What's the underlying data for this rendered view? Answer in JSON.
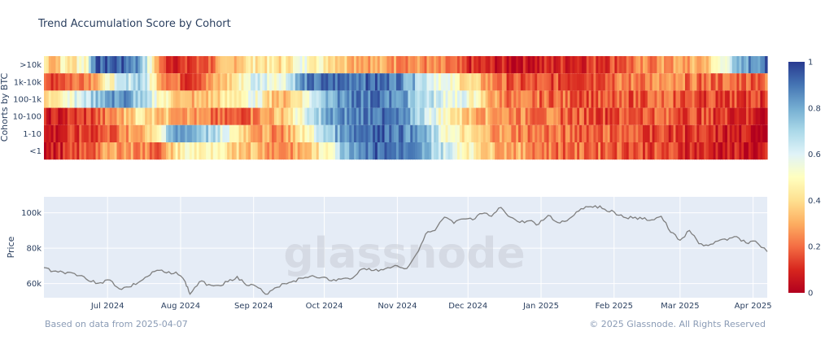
{
  "chart_data": [
    {
      "type": "heatmap",
      "title": "Trend Accumulation Score by Cohort",
      "ylabel": "Cohorts by BTC",
      "rows": [
        ">10k",
        "1k-10k",
        "100-1k",
        "10-100",
        "1-10",
        "<1"
      ],
      "x_range": [
        "2024-06-04",
        "2025-04-07"
      ],
      "colorbar": {
        "min": 0,
        "max": 1,
        "ticks": [
          0,
          0.2,
          0.4,
          0.6,
          0.8,
          1
        ],
        "tick_labels": [
          "0",
          "0.2",
          "0.4",
          "0.6",
          "0.8",
          "1"
        ]
      },
      "segments": [
        {
          "row": ">10k",
          "values": [
            [
              0,
              0.45
            ],
            [
              4,
              0.3
            ],
            [
              8,
              0.5
            ],
            [
              12,
              0.35
            ],
            [
              14,
              0.55
            ],
            [
              18,
              0.5
            ],
            [
              20,
              0.9
            ],
            [
              30,
              0.95
            ],
            [
              40,
              0.85
            ],
            [
              45,
              0.5
            ],
            [
              50,
              0.15
            ],
            [
              60,
              0.1
            ],
            [
              70,
              0.2
            ],
            [
              80,
              0.35
            ],
            [
              90,
              0.45
            ],
            [
              100,
              0.4
            ],
            [
              110,
              0.55
            ],
            [
              120,
              0.45
            ],
            [
              130,
              0.35
            ],
            [
              140,
              0.3
            ],
            [
              160,
              0.25
            ],
            [
              170,
              0.2
            ],
            [
              180,
              0.1
            ],
            [
              200,
              0.05
            ],
            [
              220,
              0.1
            ],
            [
              240,
              0.15
            ],
            [
              260,
              0.25
            ],
            [
              280,
              0.3
            ],
            [
              290,
              0.6
            ],
            [
              300,
              0.85
            ],
            [
              307,
              0.9
            ]
          ]
        },
        {
          "row": "1k-10k",
          "values": [
            [
              0,
              0.15
            ],
            [
              10,
              0.2
            ],
            [
              20,
              0.3
            ],
            [
              30,
              0.55
            ],
            [
              40,
              0.75
            ],
            [
              50,
              0.3
            ],
            [
              60,
              0.15
            ],
            [
              70,
              0.25
            ],
            [
              80,
              0.4
            ],
            [
              90,
              0.65
            ],
            [
              100,
              0.55
            ],
            [
              110,
              0.85
            ],
            [
              120,
              0.9
            ],
            [
              130,
              0.92
            ],
            [
              150,
              0.9
            ],
            [
              160,
              0.7
            ],
            [
              170,
              0.55
            ],
            [
              180,
              0.4
            ],
            [
              190,
              0.25
            ],
            [
              200,
              0.15
            ],
            [
              220,
              0.15
            ],
            [
              240,
              0.2
            ],
            [
              260,
              0.25
            ],
            [
              280,
              0.2
            ],
            [
              300,
              0.2
            ],
            [
              307,
              0.2
            ]
          ]
        },
        {
          "row": "100-1k",
          "values": [
            [
              0,
              0.35
            ],
            [
              8,
              0.55
            ],
            [
              16,
              0.6
            ],
            [
              24,
              0.8
            ],
            [
              34,
              0.85
            ],
            [
              40,
              0.7
            ],
            [
              50,
              0.5
            ],
            [
              60,
              0.3
            ],
            [
              70,
              0.35
            ],
            [
              80,
              0.45
            ],
            [
              90,
              0.55
            ],
            [
              100,
              0.3
            ],
            [
              110,
              0.5
            ],
            [
              120,
              0.8
            ],
            [
              130,
              0.85
            ],
            [
              140,
              0.9
            ],
            [
              150,
              0.85
            ],
            [
              160,
              0.7
            ],
            [
              170,
              0.6
            ],
            [
              180,
              0.55
            ],
            [
              190,
              0.3
            ],
            [
              200,
              0.2
            ],
            [
              220,
              0.2
            ],
            [
              240,
              0.15
            ],
            [
              260,
              0.2
            ],
            [
              280,
              0.15
            ],
            [
              300,
              0.15
            ],
            [
              307,
              0.1
            ]
          ]
        },
        {
          "row": "10-100",
          "values": [
            [
              0,
              0.05
            ],
            [
              10,
              0.1
            ],
            [
              20,
              0.15
            ],
            [
              30,
              0.25
            ],
            [
              40,
              0.45
            ],
            [
              50,
              0.35
            ],
            [
              60,
              0.3
            ],
            [
              70,
              0.2
            ],
            [
              80,
              0.15
            ],
            [
              90,
              0.25
            ],
            [
              100,
              0.35
            ],
            [
              110,
              0.55
            ],
            [
              120,
              0.8
            ],
            [
              140,
              0.92
            ],
            [
              150,
              0.85
            ],
            [
              160,
              0.7
            ],
            [
              170,
              0.5
            ],
            [
              180,
              0.35
            ],
            [
              190,
              0.3
            ],
            [
              200,
              0.25
            ],
            [
              220,
              0.2
            ],
            [
              240,
              0.15
            ],
            [
              260,
              0.2
            ],
            [
              280,
              0.15
            ],
            [
              300,
              0.1
            ],
            [
              307,
              0.05
            ]
          ]
        },
        {
          "row": "1-10",
          "values": [
            [
              0,
              0.05
            ],
            [
              10,
              0.1
            ],
            [
              20,
              0.15
            ],
            [
              30,
              0.2
            ],
            [
              40,
              0.3
            ],
            [
              50,
              0.55
            ],
            [
              55,
              0.8
            ],
            [
              60,
              0.85
            ],
            [
              70,
              0.7
            ],
            [
              80,
              0.5
            ],
            [
              90,
              0.3
            ],
            [
              100,
              0.25
            ],
            [
              110,
              0.45
            ],
            [
              120,
              0.7
            ],
            [
              130,
              0.9
            ],
            [
              140,
              0.95
            ],
            [
              150,
              0.9
            ],
            [
              160,
              0.8
            ],
            [
              170,
              0.55
            ],
            [
              180,
              0.4
            ],
            [
              190,
              0.3
            ],
            [
              200,
              0.25
            ],
            [
              220,
              0.2
            ],
            [
              240,
              0.2
            ],
            [
              260,
              0.15
            ],
            [
              280,
              0.1
            ],
            [
              300,
              0.05
            ],
            [
              307,
              0.05
            ]
          ]
        },
        {
          "row": "<1",
          "values": [
            [
              0,
              0.05
            ],
            [
              10,
              0.1
            ],
            [
              20,
              0.2
            ],
            [
              30,
              0.3
            ],
            [
              40,
              0.25
            ],
            [
              50,
              0.2
            ],
            [
              55,
              0.4
            ],
            [
              60,
              0.5
            ],
            [
              70,
              0.45
            ],
            [
              80,
              0.4
            ],
            [
              90,
              0.35
            ],
            [
              100,
              0.25
            ],
            [
              110,
              0.3
            ],
            [
              120,
              0.5
            ],
            [
              130,
              0.85
            ],
            [
              140,
              0.92
            ],
            [
              150,
              0.9
            ],
            [
              160,
              0.8
            ],
            [
              170,
              0.65
            ],
            [
              180,
              0.5
            ],
            [
              190,
              0.35
            ],
            [
              200,
              0.3
            ],
            [
              220,
              0.2
            ],
            [
              240,
              0.2
            ],
            [
              260,
              0.15
            ],
            [
              280,
              0.1
            ],
            [
              300,
              0.05
            ],
            [
              307,
              0.05
            ]
          ]
        }
      ]
    },
    {
      "type": "line",
      "ylabel": "Price",
      "y_ticks": [
        60000,
        80000,
        100000
      ],
      "y_tick_labels": [
        "60k",
        "80k",
        "100k"
      ],
      "ylim": [
        52000,
        109000
      ],
      "x_ticks": [
        "2024-07-01",
        "2024-08-01",
        "2024-09-01",
        "2024-10-01",
        "2024-11-01",
        "2024-12-01",
        "2025-01-01",
        "2025-02-01",
        "2025-03-01",
        "2025-04-01"
      ],
      "x_tick_labels": [
        "Jul 2024",
        "Aug 2024",
        "Sep 2024",
        "Oct 2024",
        "Nov 2024",
        "Dec 2024",
        "Jan 2025",
        "Feb 2025",
        "Mar 2025",
        "Apr 2025"
      ],
      "series": [
        {
          "x": [
            "2024-06-04",
            "2024-06-08",
            "2024-06-12",
            "2024-06-16",
            "2024-06-20",
            "2024-06-24",
            "2024-06-28",
            "2024-07-02",
            "2024-07-06",
            "2024-07-10",
            "2024-07-14",
            "2024-07-18",
            "2024-07-22",
            "2024-07-26",
            "2024-07-30",
            "2024-08-03",
            "2024-08-05",
            "2024-08-09",
            "2024-08-13",
            "2024-08-17",
            "2024-08-21",
            "2024-08-25",
            "2024-08-29",
            "2024-09-02",
            "2024-09-06",
            "2024-09-10",
            "2024-09-14",
            "2024-09-18",
            "2024-09-22",
            "2024-09-26",
            "2024-09-30",
            "2024-10-04",
            "2024-10-08",
            "2024-10-12",
            "2024-10-16",
            "2024-10-20",
            "2024-10-24",
            "2024-10-28",
            "2024-11-01",
            "2024-11-05",
            "2024-11-09",
            "2024-11-13",
            "2024-11-17",
            "2024-11-21",
            "2024-11-25",
            "2024-11-29",
            "2024-12-03",
            "2024-12-07",
            "2024-12-11",
            "2024-12-15",
            "2024-12-19",
            "2024-12-23",
            "2024-12-27",
            "2024-12-31",
            "2025-01-04",
            "2025-01-08",
            "2025-01-12",
            "2025-01-16",
            "2025-01-20",
            "2025-01-24",
            "2025-01-28",
            "2025-02-01",
            "2025-02-05",
            "2025-02-09",
            "2025-02-13",
            "2025-02-17",
            "2025-02-21",
            "2025-02-25",
            "2025-03-01",
            "2025-03-05",
            "2025-03-09",
            "2025-03-13",
            "2025-03-17",
            "2025-03-21",
            "2025-03-25",
            "2025-03-29",
            "2025-04-02",
            "2025-04-07"
          ],
          "y": [
            69000,
            67000,
            66500,
            66000,
            64500,
            61000,
            60500,
            62000,
            57000,
            58000,
            60500,
            64000,
            67500,
            66000,
            66500,
            61000,
            54000,
            61000,
            59500,
            59000,
            61000,
            64000,
            59000,
            58500,
            54000,
            57500,
            60000,
            61500,
            63000,
            64500,
            63500,
            61500,
            62500,
            62500,
            67500,
            68500,
            67000,
            69000,
            70000,
            68500,
            76500,
            88000,
            90000,
            97500,
            94000,
            96500,
            96000,
            99500,
            98000,
            103000,
            97500,
            94500,
            95500,
            93500,
            98500,
            94500,
            95500,
            100500,
            103500,
            104000,
            102000,
            100500,
            97500,
            97000,
            96500,
            96000,
            98000,
            89000,
            84500,
            90000,
            82500,
            81500,
            84000,
            84500,
            86500,
            83000,
            84000,
            78000
          ]
        }
      ]
    }
  ],
  "watermark": "glassnode",
  "footer": {
    "left": "Based on data from 2025-04-07",
    "right": "© 2025 Glassnode. All Rights Reserved"
  },
  "colors": {
    "heat_low": "#c2001b",
    "heat_mid": "#ffffc0",
    "heat_high": "#2a3d9a",
    "price_line": "#7f7f7f",
    "price_bg": "#e5ecf6"
  }
}
